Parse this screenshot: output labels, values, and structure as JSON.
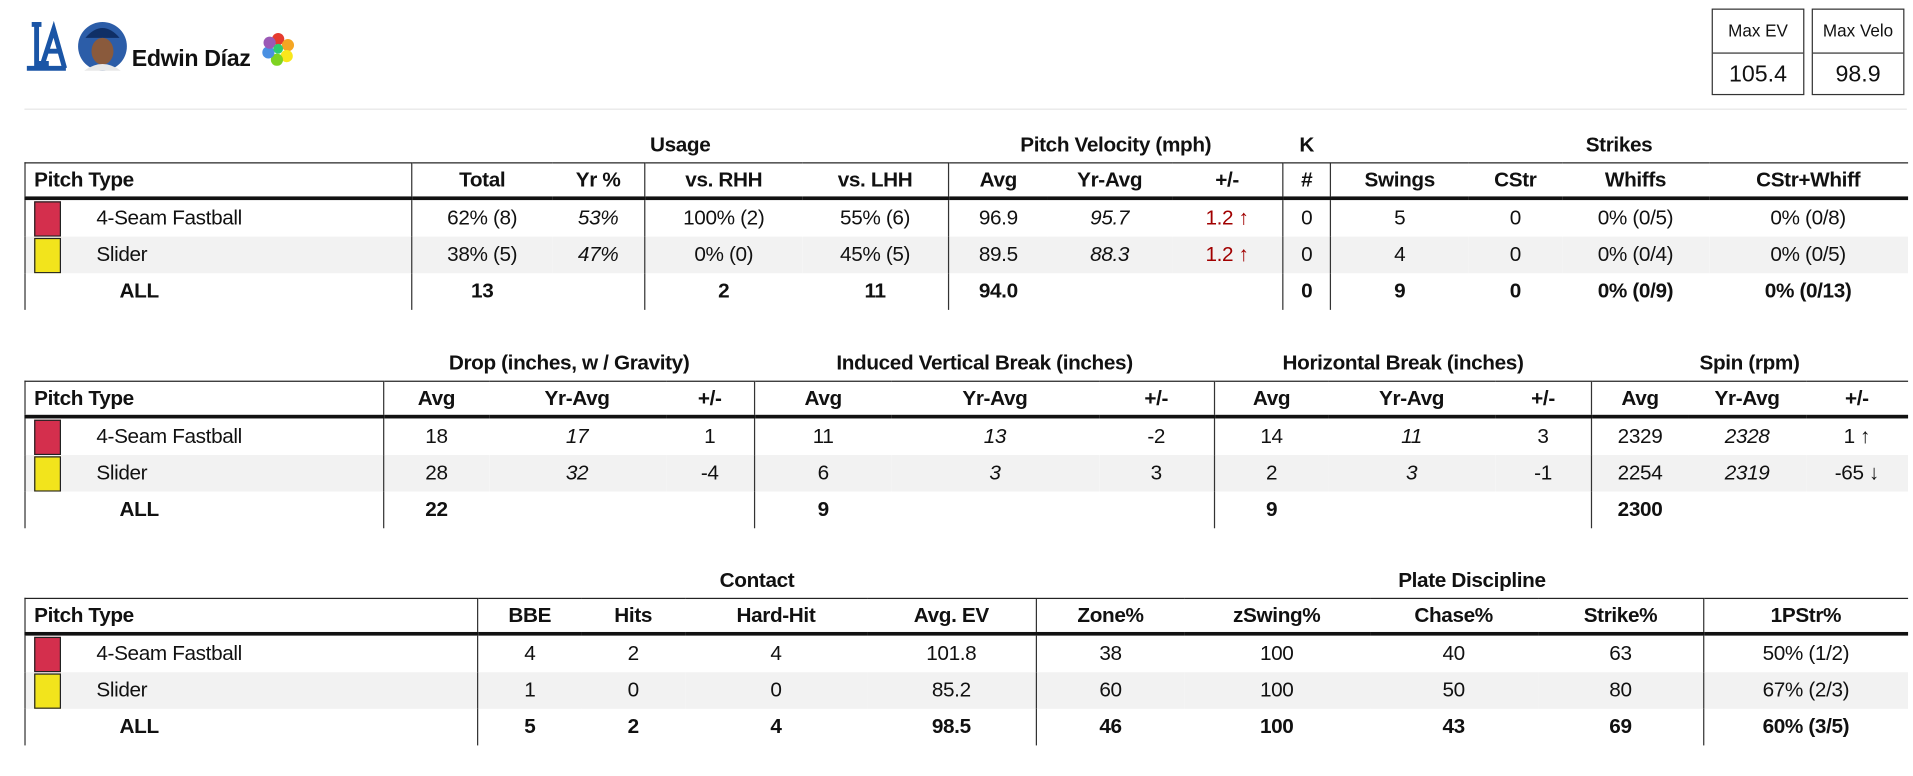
{
  "header": {
    "player_name": "Edwin Díaz",
    "stats": [
      {
        "label": "Max EV",
        "value": "105.4"
      },
      {
        "label": "Max Velo",
        "value": "98.9"
      }
    ]
  },
  "tables": [
    {
      "groups": [
        "Usage",
        "Pitch Velocity (mph)",
        "K",
        "Strikes"
      ],
      "columns": [
        "Pitch Type",
        "Total",
        "Yr %",
        "vs. RHH",
        "vs. LHH",
        "Avg",
        "Yr-Avg",
        "+/-",
        "#",
        "Swings",
        "CStr",
        "Whiffs",
        "CStr+Whiff"
      ],
      "rows": [
        {
          "pitch_type": "4-Seam Fastball",
          "color": "#d42f4d",
          "cells": [
            "62% (8)",
            "53%",
            "100% (2)",
            "55% (6)",
            "96.9",
            "95.7",
            "1.2 ↑",
            "0",
            "5",
            "0",
            "0% (0/5)",
            "0% (0/8)"
          ]
        },
        {
          "pitch_type": "Slider",
          "color": "#f2e41c",
          "cells": [
            "38% (5)",
            "47%",
            "0% (0)",
            "45% (5)",
            "89.5",
            "88.3",
            "1.2 ↑",
            "0",
            "4",
            "0",
            "0% (0/4)",
            "0% (0/5)"
          ]
        }
      ],
      "total": {
        "label": "ALL",
        "cells": [
          "13",
          null,
          "2",
          "11",
          "94.0",
          null,
          null,
          "0",
          "9",
          "0",
          "0% (0/9)",
          "0% (0/13)"
        ]
      }
    },
    {
      "groups": [
        "Drop (inches, w / Gravity)",
        "Induced Vertical Break (inches)",
        "Horizontal Break (inches)",
        "Spin (rpm)"
      ],
      "columns": [
        "Pitch Type",
        "Avg",
        "Yr-Avg",
        "+/-",
        "Avg",
        "Yr-Avg",
        "+/-",
        "Avg",
        "Yr-Avg",
        "+/-",
        "Avg",
        "Yr-Avg",
        "+/-"
      ],
      "rows": [
        {
          "pitch_type": "4-Seam Fastball",
          "color": "#d42f4d",
          "cells": [
            "18",
            "17",
            "1",
            "11",
            "13",
            "-2",
            "14",
            "11",
            "3",
            "2329",
            "2328",
            "1 ↑"
          ]
        },
        {
          "pitch_type": "Slider",
          "color": "#f2e41c",
          "cells": [
            "28",
            "32",
            "-4",
            "6",
            "3",
            "3",
            "2",
            "3",
            "-1",
            "2254",
            "2319",
            "-65 ↓"
          ]
        }
      ],
      "total": {
        "label": "ALL",
        "cells": [
          "22",
          null,
          null,
          "9",
          null,
          null,
          "9",
          null,
          null,
          "2300",
          null,
          null
        ]
      }
    },
    {
      "groups": [
        "Contact",
        "Plate Discipline"
      ],
      "columns": [
        "Pitch Type",
        "BBE",
        "Hits",
        "Hard-Hit",
        "Avg. EV",
        "Zone%",
        "zSwing%",
        "Chase%",
        "Strike%",
        "1PStr%"
      ],
      "rows": [
        {
          "pitch_type": "4-Seam Fastball",
          "color": "#d42f4d",
          "cells": [
            "4",
            "2",
            "4",
            "101.8",
            "38",
            "100",
            "40",
            "63",
            "50% (1/2)"
          ]
        },
        {
          "pitch_type": "Slider",
          "color": "#f2e41c",
          "cells": [
            "1",
            "0",
            "0",
            "85.2",
            "60",
            "100",
            "50",
            "80",
            "67% (2/3)"
          ]
        }
      ],
      "total": {
        "label": "ALL",
        "cells": [
          "5",
          "2",
          "4",
          "98.5",
          "46",
          "100",
          "43",
          "69",
          "60% (3/5)"
        ]
      }
    }
  ]
}
